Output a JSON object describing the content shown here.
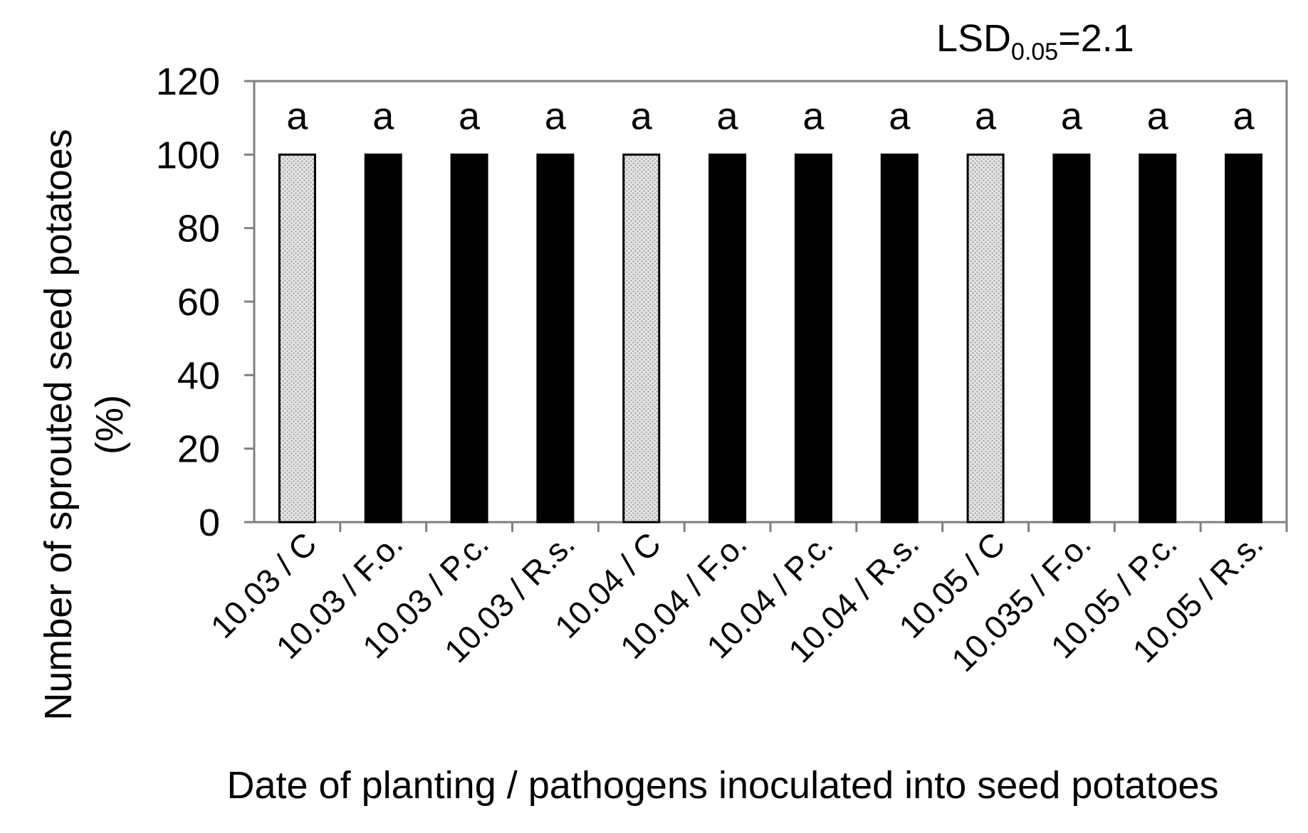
{
  "chart_data": {
    "type": "bar",
    "categories": [
      "10.03 / C",
      "10.03 / F.o.",
      "10.03 / P.c.",
      "10.03 / R.s.",
      "10.04 / C",
      "10.04 / F.o.",
      "10.04 / P.c.",
      "10.04 / R.s.",
      "10.05 / C",
      "10.035 / F.o.",
      "10.05 / P.c.",
      "10.05 / R.s."
    ],
    "values": [
      100,
      100,
      100,
      100,
      100,
      100,
      100,
      100,
      100,
      100,
      100,
      100
    ],
    "bar_fill": [
      "dotted",
      "solid",
      "solid",
      "solid",
      "dotted",
      "solid",
      "solid",
      "solid",
      "dotted",
      "solid",
      "solid",
      "solid"
    ],
    "significance_letters": [
      "a",
      "a",
      "a",
      "a",
      "a",
      "a",
      "a",
      "a",
      "a",
      "a",
      "a",
      "a"
    ],
    "xlabel": "Date of planting / pathogens inoculated into seed potatoes",
    "ylabel_line1": "Number of sprouted seed potatoes",
    "ylabel_line2": "(%)",
    "ylim": [
      0,
      120
    ],
    "yticks": [
      0,
      20,
      40,
      60,
      80,
      100,
      120
    ],
    "annotation": {
      "main": "LSD",
      "subscript": "0.05",
      "suffix": "=2.1"
    },
    "grid": false,
    "legend": "none",
    "colors": {
      "solid": "#000000",
      "dotted_base": "#e4e4e4",
      "dotted_dot": "#8c8c8c",
      "axis": "#808080"
    }
  }
}
